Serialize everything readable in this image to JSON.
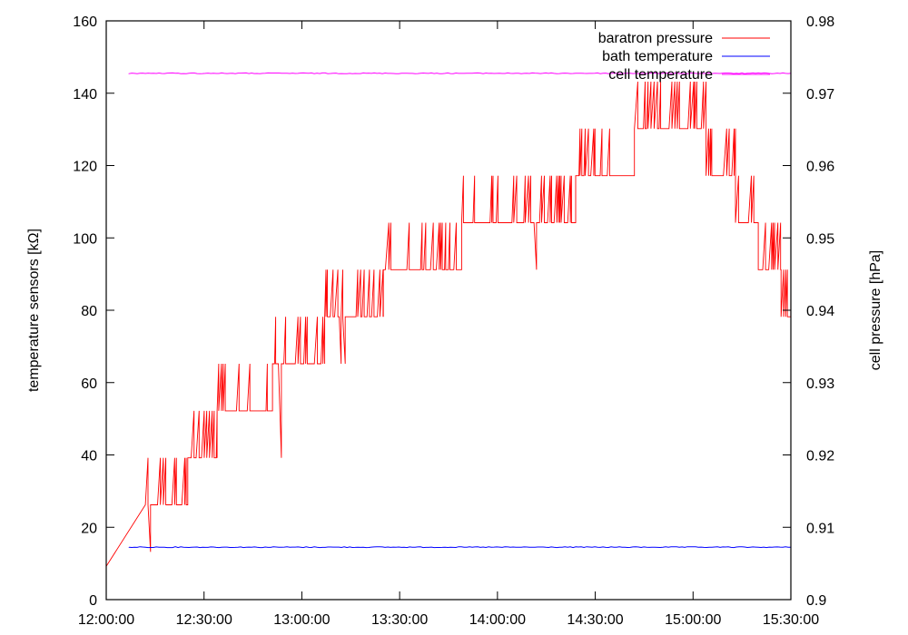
{
  "chart_data": {
    "type": "line",
    "title": "",
    "ylabel_left": "temperature sensors [kΩ]",
    "ylabel_right": "cell pressure [hPa]",
    "x_ticks": [
      "12:00:00",
      "12:30:00",
      "13:00:00",
      "13:30:00",
      "14:00:00",
      "14:30:00",
      "15:00:00",
      "15:30:00"
    ],
    "xlim": [
      "12:00:00",
      "15:30:00"
    ],
    "y_left_ticks": [
      "0",
      "20",
      "40",
      "60",
      "80",
      "100",
      "120",
      "140",
      "160"
    ],
    "ylim_left": [
      0,
      160
    ],
    "y_right_ticks": [
      "0.9",
      "0.91",
      "0.92",
      "0.93",
      "0.94",
      "0.95",
      "0.96",
      "0.97",
      "0.98"
    ],
    "ylim_right": [
      0.9,
      0.98
    ],
    "grid": false,
    "legend_position": "top-right",
    "series": [
      {
        "name": "baratron pressure",
        "axis": "right",
        "color": "#ff0000",
        "levels_hPa": [
          0.9033,
          0.9098,
          0.9163,
          0.9228,
          0.9293,
          0.9358,
          0.9423,
          0.9488,
          0.9553,
          0.9618,
          0.9683,
          0.9748
        ],
        "steps": [
          {
            "time": "12:00:00",
            "base": 0.9046
          },
          {
            "time": "12:12:00",
            "base": 0.9131,
            "upper": 0.9196,
            "lower": 0.9066
          },
          {
            "time": "12:25:00",
            "base": 0.9196,
            "upper": 0.9261
          },
          {
            "time": "12:34:00",
            "base": 0.9261,
            "upper": 0.9326
          },
          {
            "time": "12:51:00",
            "base": 0.9326,
            "upper": 0.9391,
            "lower": 0.9196
          },
          {
            "time": "13:00:00",
            "base": 0.9326,
            "upper": 0.9391
          },
          {
            "time": "13:07:00",
            "base": 0.9391,
            "upper": 0.9456,
            "lower": 0.9326
          },
          {
            "time": "13:25:00",
            "base": 0.9456,
            "upper": 0.9521
          },
          {
            "time": "13:38:00",
            "base": 0.9456,
            "upper": 0.9521
          },
          {
            "time": "13:49:00",
            "base": 0.9521,
            "upper": 0.9586
          },
          {
            "time": "14:05:00",
            "base": 0.9521,
            "upper": 0.9586,
            "lower": 0.9456
          },
          {
            "time": "14:24:00",
            "base": 0.9586,
            "upper": 0.9651,
            "lower": 0.9456
          },
          {
            "time": "14:33:00",
            "base": 0.9586,
            "upper": 0.9651
          },
          {
            "time": "14:42:00",
            "base": 0.9651,
            "upper": 0.9716
          },
          {
            "time": "15:04:00",
            "base": 0.9586,
            "upper": 0.9651
          },
          {
            "time": "15:13:00",
            "base": 0.9521,
            "upper": 0.9586
          },
          {
            "time": "15:20:00",
            "base": 0.9456,
            "upper": 0.9521
          },
          {
            "time": "15:27:00",
            "base": 0.9391,
            "upper": 0.9456
          },
          {
            "time": "15:30:00",
            "base": 0.9391
          }
        ]
      },
      {
        "name": "bath temperature",
        "axis": "left",
        "color": "#0000ff",
        "x": [
          "12:07:00",
          "15:30:00"
        ],
        "y": [
          14.5,
          14.5
        ]
      },
      {
        "name": "cell temperature",
        "axis": "left",
        "color": "#ff00ff",
        "x": [
          "12:07:00",
          "15:30:00"
        ],
        "y": [
          145.5,
          145.5
        ]
      }
    ]
  }
}
